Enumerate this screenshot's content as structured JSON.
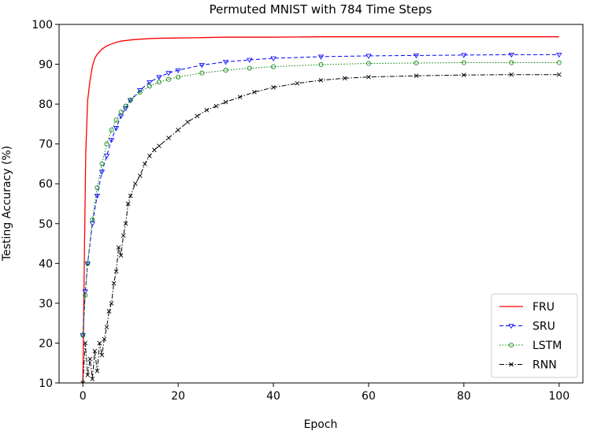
{
  "chart_data": {
    "type": "line",
    "title": "Permuted MNIST with 784 Time Steps",
    "xlabel": "Epoch",
    "ylabel": "Testing Accuracy (%)",
    "xlim": [
      -5,
      105
    ],
    "ylim": [
      10,
      100
    ],
    "xticks": [
      0,
      20,
      40,
      60,
      80,
      100
    ],
    "yticks": [
      10,
      20,
      30,
      40,
      50,
      60,
      70,
      80,
      90,
      100
    ],
    "legend_position": "lower right",
    "series": [
      {
        "name": "FRU",
        "color": "#ff0000",
        "dash": "",
        "marker": "none",
        "x": [
          0,
          0.3,
          0.6,
          1,
          1.5,
          2,
          2.5,
          3,
          4,
          5,
          6,
          7,
          8,
          10,
          12,
          15,
          20,
          25,
          30,
          40,
          50,
          60,
          70,
          80,
          90,
          100
        ],
        "y": [
          10,
          40,
          68,
          81,
          86,
          89.5,
          91.5,
          92.5,
          93.8,
          94.6,
          95.1,
          95.5,
          95.8,
          96.1,
          96.3,
          96.5,
          96.6,
          96.7,
          96.8,
          96.8,
          96.9,
          96.9,
          96.9,
          96.9,
          96.9,
          96.9
        ]
      },
      {
        "name": "SRU",
        "color": "#0000ff",
        "dash": "5,3",
        "marker": "triangle",
        "x": [
          0,
          0.5,
          1,
          2,
          3,
          4,
          5,
          6,
          7,
          8,
          9,
          10,
          12,
          14,
          16,
          18,
          20,
          25,
          30,
          35,
          40,
          50,
          60,
          70,
          80,
          90,
          100
        ],
        "y": [
          22,
          33,
          40,
          50,
          57,
          63,
          67,
          71,
          74,
          77,
          79,
          81,
          83.5,
          85.5,
          86.8,
          87.8,
          88.5,
          89.8,
          90.6,
          91.1,
          91.5,
          91.9,
          92.1,
          92.2,
          92.3,
          92.4,
          92.4
        ]
      },
      {
        "name": "LSTM",
        "color": "#008000",
        "dash": "1.5,2",
        "marker": "circle",
        "x": [
          0,
          0.5,
          1,
          2,
          3,
          4,
          5,
          6,
          7,
          8,
          9,
          10,
          12,
          14,
          16,
          18,
          20,
          25,
          30,
          35,
          40,
          50,
          60,
          70,
          80,
          90,
          100
        ],
        "y": [
          22,
          32,
          40,
          51,
          59,
          65,
          70,
          73.5,
          76,
          78,
          79.5,
          81,
          83,
          84.5,
          85.5,
          86.2,
          86.8,
          87.8,
          88.5,
          89,
          89.4,
          89.9,
          90.2,
          90.3,
          90.4,
          90.4,
          90.4
        ]
      },
      {
        "name": "RNN",
        "color": "#000000",
        "dash": "6,2,1.5,2",
        "marker": "x",
        "x": [
          0,
          0.5,
          1,
          1.5,
          2,
          2.5,
          3,
          3.5,
          4,
          4.5,
          5,
          5.5,
          6,
          6.5,
          7,
          7.5,
          8,
          8.5,
          9,
          9.5,
          10,
          11,
          12,
          13,
          14,
          15,
          16,
          18,
          20,
          22,
          24,
          26,
          28,
          30,
          33,
          36,
          40,
          45,
          50,
          55,
          60,
          70,
          80,
          90,
          100
        ],
        "y": [
          10,
          20,
          12,
          16,
          11,
          18,
          13,
          20,
          17,
          21,
          24,
          28,
          30,
          35,
          38,
          44,
          42,
          47,
          50,
          55,
          57,
          60,
          62,
          65,
          67,
          68.5,
          69.5,
          71.5,
          73.5,
          75.5,
          77,
          78.5,
          79.5,
          80.5,
          81.8,
          83,
          84.2,
          85.2,
          86,
          86.5,
          86.8,
          87.1,
          87.3,
          87.4,
          87.4
        ]
      }
    ]
  }
}
